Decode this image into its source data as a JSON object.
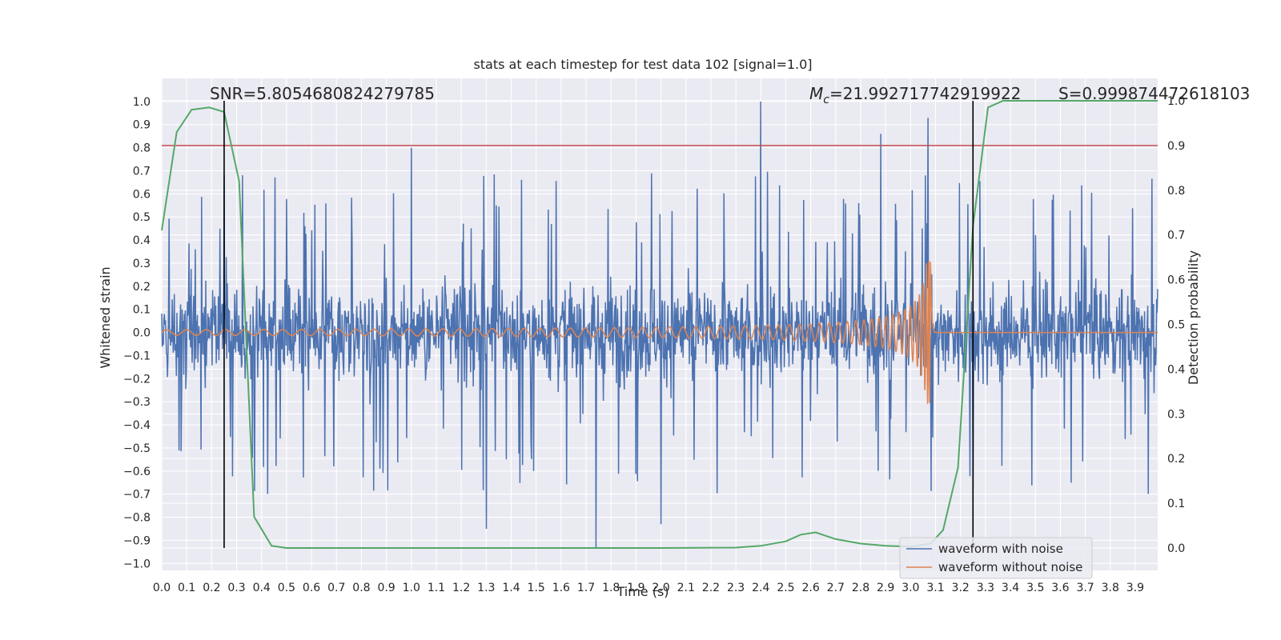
{
  "chart_data": {
    "type": "line",
    "title": "stats at each timestep for test data 102 [signal=1.0]",
    "xlabel": "Time (s)",
    "ylabel": "Whitened strain",
    "y2label": "Detection probability",
    "xlim": [
      0.0,
      3.99
    ],
    "ylim": [
      -1.03,
      1.1
    ],
    "y2lim": [
      -0.05,
      1.05
    ],
    "x_ticks": [
      "0.0",
      "0.1",
      "0.2",
      "0.3",
      "0.4",
      "0.5",
      "0.6",
      "0.7",
      "0.8",
      "0.9",
      "1.0",
      "1.1",
      "1.2",
      "1.3",
      "1.4",
      "1.5",
      "1.6",
      "1.7",
      "1.8",
      "1.9",
      "2.0",
      "2.1",
      "2.2",
      "2.3",
      "2.4",
      "2.5",
      "2.6",
      "2.7",
      "2.8",
      "2.9",
      "3.0",
      "3.1",
      "3.2",
      "3.3",
      "3.4",
      "3.5",
      "3.6",
      "3.7",
      "3.8",
      "3.9"
    ],
    "y_ticks": [
      "1.0",
      "0.9",
      "0.8",
      "0.7",
      "0.6",
      "0.5",
      "0.4",
      "0.3",
      "0.2",
      "0.1",
      "0.0",
      "−0.1",
      "−0.2",
      "−0.3",
      "−0.4",
      "−0.5",
      "−0.6",
      "−0.7",
      "−0.8",
      "−0.9",
      "−1.0"
    ],
    "y2_ticks": [
      "1.0",
      "0.9",
      "0.8",
      "0.7",
      "0.6",
      "0.5",
      "0.4",
      "0.3",
      "0.2",
      "0.1",
      "0.0"
    ],
    "grid": true,
    "legend_position": "bottom-right",
    "annotations": {
      "snr": "SNR=5.8054680824279785",
      "mc_symbol": "M",
      "mc_sub": "c",
      "mc_value": "=21.992717742919922",
      "s": "S=0.999874472618103"
    },
    "series": [
      {
        "name": "waveform with noise",
        "color": "#4c72b0",
        "description": "whitened strain with noise, amplitude mostly within ±0.5 with spikes to ±1.0",
        "notable_peaks": [
          [
            0.25,
            0.68
          ],
          [
            1.0,
            0.8
          ],
          [
            1.74,
            -0.93
          ],
          [
            2.4,
            1.0
          ],
          [
            2.88,
            0.86
          ],
          [
            3.07,
            0.93
          ],
          [
            2.0,
            -0.83
          ],
          [
            1.3,
            -0.85
          ]
        ]
      },
      {
        "name": "waveform without noise",
        "color": "#dd8452",
        "description": "chirp signal with growing amplitude and frequency, merging near t=3.08 s",
        "merger_time": 3.08,
        "peak_amplitude": 0.31
      },
      {
        "name": "",
        "axis": "right",
        "color": "#55a868",
        "x": [
          0.0,
          0.06,
          0.12,
          0.19,
          0.25,
          0.31,
          0.37,
          0.44,
          0.5,
          1.0,
          2.0,
          2.3,
          2.4,
          2.5,
          2.56,
          2.62,
          2.7,
          2.8,
          2.9,
          3.0,
          3.08,
          3.13,
          3.19,
          3.25,
          3.31,
          3.37,
          3.45,
          3.99
        ],
        "y": [
          0.71,
          0.93,
          0.98,
          0.985,
          0.975,
          0.82,
          0.07,
          0.005,
          0.0,
          0.0,
          0.0,
          0.001,
          0.005,
          0.015,
          0.03,
          0.035,
          0.02,
          0.01,
          0.005,
          0.003,
          0.01,
          0.04,
          0.18,
          0.72,
          0.985,
          1.0,
          1.0,
          1.0
        ]
      }
    ],
    "threshold_line": {
      "axis": "right",
      "value": 0.9,
      "color": "#c44e52"
    },
    "vertical_markers": [
      {
        "x": 0.25,
        "color": "#000000"
      },
      {
        "x": 3.25,
        "color": "#000000"
      }
    ]
  }
}
